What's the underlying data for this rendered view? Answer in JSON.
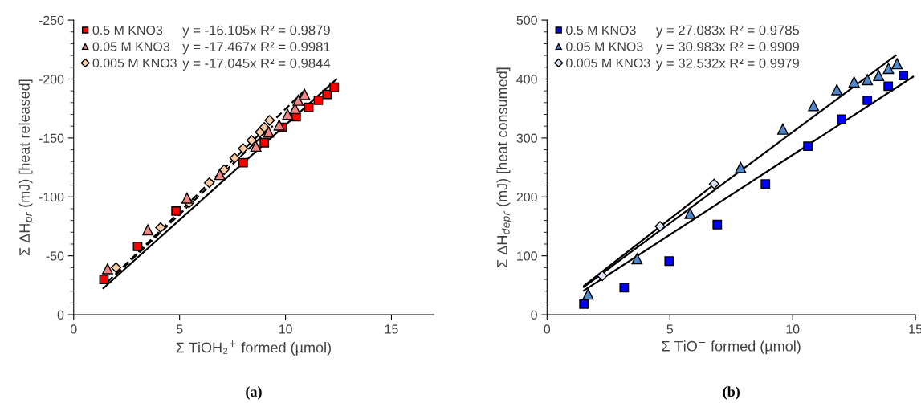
{
  "chart_data": [
    {
      "type": "scatter",
      "title": "(a)",
      "xlabel": "Σ TiOH₂$^{+}$ formed (µmol)",
      "ylabel": "Σ ΔH$_{pr}$ (mJ) [heat released]",
      "xlim": [
        0,
        17
      ],
      "xticks": [
        0,
        5,
        10,
        15
      ],
      "ylim": [
        0,
        -250
      ],
      "yticks": [
        0,
        -50,
        -100,
        -150,
        -200,
        -250
      ],
      "grid": false,
      "legend": "top left",
      "annotations": [
        "y = -16.105x R² = 0.9879",
        "y = -17.467x R² = 0.9981",
        "y = -17.045x R² = 0.9844"
      ],
      "series": [
        {
          "name": "0.5 M KNO3",
          "color": "#ff0000",
          "marker": "square",
          "x": [
            1.43,
            3.02,
            4.83,
            8.0,
            9.0,
            9.85,
            10.5,
            11.1,
            11.55,
            11.96,
            12.3
          ],
          "values": [
            -30,
            -58,
            -88,
            -129,
            -146,
            -159,
            -168,
            -176,
            -182,
            -187,
            -193
          ]
        },
        {
          "name": "0.05 M KNO3",
          "color": "#f28585",
          "marker": "triangle",
          "x": [
            1.6,
            3.5,
            5.35,
            6.9,
            8.6,
            9.2,
            9.7,
            10.1,
            10.45,
            10.6,
            10.9
          ],
          "values": [
            -39,
            -72,
            -99,
            -119,
            -143,
            -155,
            -161,
            -170,
            -175,
            -182,
            -187
          ]
        },
        {
          "name": "0.005 M KNO3",
          "color": "#f9cba4",
          "marker": "diamond",
          "x": [
            2.0,
            4.1,
            5.45,
            6.4,
            7.1,
            7.6,
            8.0,
            8.4,
            8.8,
            9.0,
            9.25
          ],
          "values": [
            -40,
            -74,
            -95,
            -112,
            -123,
            -133,
            -141,
            -148,
            -155,
            -159,
            -165
          ]
        },
        {
          "type": "line",
          "color": "#000000",
          "marker": "none",
          "line_style": "solid",
          "x": [
            1.4,
            12.4
          ],
          "values": [
            -22.5,
            -199.7
          ]
        },
        {
          "type": "line",
          "color": "#000000",
          "marker": "none",
          "line_style": "dashed",
          "x": [
            1.6,
            11.0
          ],
          "values": [
            -27.9,
            -192.1
          ]
        },
        {
          "type": "line",
          "color": "#000000",
          "marker": "none",
          "line_style": "dashed",
          "x": [
            2.0,
            9.4
          ],
          "values": [
            -34.1,
            -160.2
          ]
        }
      ]
    },
    {
      "type": "scatter",
      "title": "(b)",
      "xlabel": "Σ TiO$^{−}$ formed (µmol)",
      "ylabel": "Σ ΔH$_{depr}$ (mJ) [heat consumed]",
      "xlim": [
        0,
        15
      ],
      "xticks": [
        0,
        5,
        10,
        15
      ],
      "ylim": [
        0,
        500
      ],
      "yticks": [
        0,
        100,
        200,
        300,
        400,
        500
      ],
      "grid": false,
      "legend": "top left",
      "annotations": [
        "y = 27.083x R² = 0.9785",
        "y = 30.983x R² = 0.9909",
        "y = 32.532x R² = 0.9979"
      ],
      "series": [
        {
          "name": "0.5 M KNO3",
          "color": "#0000ff",
          "marker": "square",
          "x": [
            1.5,
            3.14,
            4.97,
            6.93,
            8.89,
            10.62,
            11.99,
            13.04,
            13.89,
            14.51
          ],
          "values": [
            18,
            46,
            91,
            153,
            222,
            286,
            332,
            364,
            388,
            406
          ]
        },
        {
          "name": "0.05 M KNO3",
          "color": "#4f88cc",
          "marker": "triangle",
          "x": [
            1.67,
            3.66,
            5.82,
            7.88,
            9.6,
            10.85,
            11.8,
            12.5,
            13.04,
            13.5,
            13.9,
            14.25
          ],
          "values": [
            35,
            95,
            172,
            250,
            315,
            355,
            382,
            395,
            399,
            406,
            418,
            426
          ]
        },
        {
          "name": "0.005 M KNO3",
          "color": "#dae3f3",
          "marker": "diamond",
          "x": [
            2.25,
            4.6,
            6.8
          ],
          "values": [
            66,
            150,
            222
          ]
        },
        {
          "type": "line",
          "color": "#000000",
          "marker": "none",
          "line_style": "solid",
          "x": [
            1.5,
            14.9
          ],
          "values": [
            41,
            404
          ]
        },
        {
          "type": "line",
          "color": "#000000",
          "marker": "none",
          "line_style": "solid",
          "x": [
            1.5,
            14.2
          ],
          "values": [
            47,
            440
          ]
        },
        {
          "type": "line",
          "color": "#000000",
          "marker": "none",
          "line_style": "solid",
          "x": [
            1.5,
            6.8
          ],
          "values": [
            49,
            221
          ]
        }
      ]
    }
  ]
}
